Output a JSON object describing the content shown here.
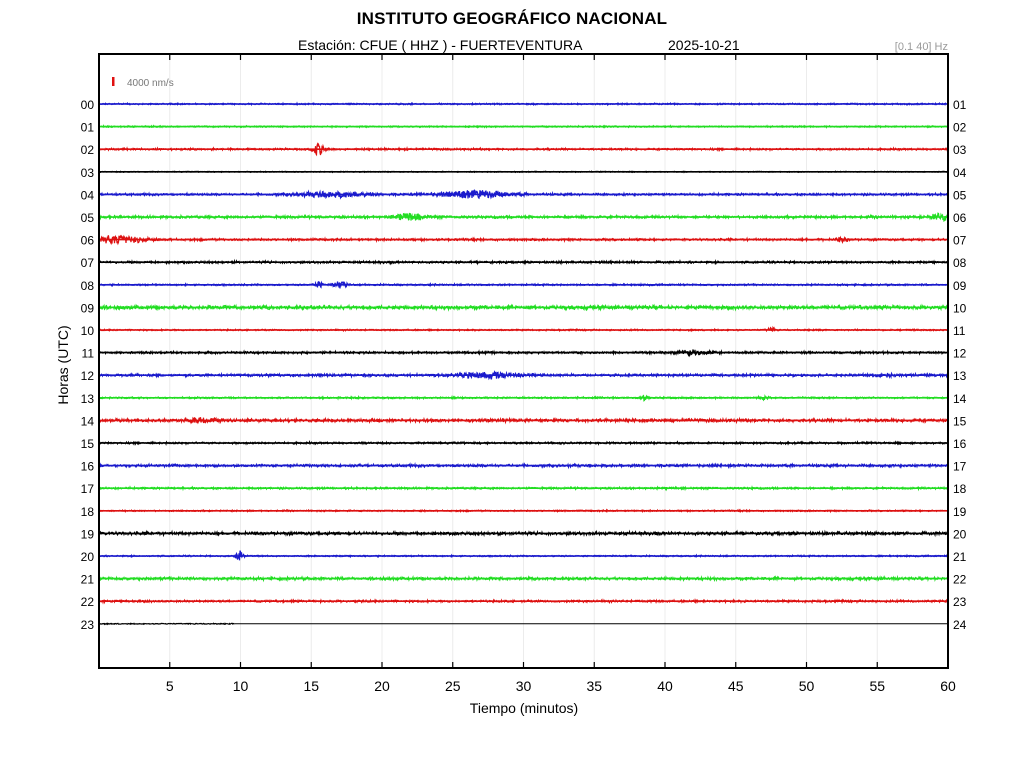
{
  "header": {
    "title": "INSTITUTO GEOGRÁFICO NACIONAL",
    "station": "Estación:  CFUE ( HHZ ) - FUERTEVENTURA",
    "date": "2025-10-21",
    "filter": "[0.1 40] Hz"
  },
  "chart_data": {
    "type": "line",
    "title": "INSTITUTO GEOGRÁFICO NACIONAL",
    "xlabel": "Tiempo (minutos)",
    "ylabel": "Horas (UTC)",
    "xlim": [
      0,
      60
    ],
    "x_ticks": [
      5,
      10,
      15,
      20,
      25,
      30,
      35,
      40,
      45,
      50,
      55,
      60
    ],
    "grid": true,
    "scale_bar": {
      "label": "4000 nm/s",
      "color": "#e01010"
    },
    "colors": {
      "blue": "#1a1acc",
      "green": "#22dd22",
      "red": "#dd1111",
      "black": "#000000"
    },
    "series": [
      {
        "left_label": "00",
        "right_label": "01",
        "color": "blue",
        "noise": 0.6,
        "events": []
      },
      {
        "left_label": "01",
        "right_label": "02",
        "color": "green",
        "noise": 0.6,
        "events": []
      },
      {
        "left_label": "02",
        "right_label": "03",
        "color": "red",
        "noise": 0.8,
        "events": [
          [
            15.5,
            5.5,
            0.4
          ]
        ]
      },
      {
        "left_label": "03",
        "right_label": "04",
        "color": "black",
        "noise": 0.4,
        "events": []
      },
      {
        "left_label": "04",
        "right_label": "05",
        "color": "blue",
        "noise": 0.9,
        "events": [
          [
            16.5,
            2.5,
            2.5
          ],
          [
            26.5,
            3.5,
            2.5
          ]
        ]
      },
      {
        "left_label": "05",
        "right_label": "06",
        "color": "green",
        "noise": 1.1,
        "events": [
          [
            22,
            3,
            1
          ],
          [
            59.5,
            3,
            0.8
          ]
        ]
      },
      {
        "left_label": "06",
        "right_label": "07",
        "color": "red",
        "noise": 0.9,
        "events": [
          [
            1.2,
            3.5,
            2
          ],
          [
            52.5,
            2,
            0.4
          ]
        ]
      },
      {
        "left_label": "07",
        "right_label": "08",
        "color": "black",
        "noise": 0.9,
        "events": []
      },
      {
        "left_label": "08",
        "right_label": "09",
        "color": "blue",
        "noise": 0.7,
        "events": [
          [
            15.5,
            3,
            0.3
          ],
          [
            17,
            3.5,
            0.4
          ]
        ]
      },
      {
        "left_label": "09",
        "right_label": "10",
        "color": "green",
        "noise": 1.6,
        "events": []
      },
      {
        "left_label": "10",
        "right_label": "11",
        "color": "red",
        "noise": 0.6,
        "events": [
          [
            47.5,
            2.5,
            0.3
          ]
        ]
      },
      {
        "left_label": "11",
        "right_label": "12",
        "color": "black",
        "noise": 0.9,
        "events": [
          [
            42,
            2,
            1
          ]
        ]
      },
      {
        "left_label": "12",
        "right_label": "13",
        "color": "blue",
        "noise": 1.1,
        "events": [
          [
            27.5,
            2.5,
            2
          ],
          [
            55.5,
            2,
            0.4
          ]
        ]
      },
      {
        "left_label": "13",
        "right_label": "14",
        "color": "green",
        "noise": 0.7,
        "events": [
          [
            38.5,
            2,
            0.3
          ],
          [
            47,
            2,
            0.3
          ]
        ]
      },
      {
        "left_label": "14",
        "right_label": "15",
        "color": "red",
        "noise": 1.3,
        "events": [
          [
            7.5,
            2,
            1.2
          ]
        ]
      },
      {
        "left_label": "15",
        "right_label": "16",
        "color": "black",
        "noise": 0.8,
        "events": []
      },
      {
        "left_label": "16",
        "right_label": "17",
        "color": "blue",
        "noise": 1.1,
        "events": []
      },
      {
        "left_label": "17",
        "right_label": "18",
        "color": "green",
        "noise": 0.8,
        "events": []
      },
      {
        "left_label": "18",
        "right_label": "19",
        "color": "red",
        "noise": 0.6,
        "events": []
      },
      {
        "left_label": "19",
        "right_label": "20",
        "color": "black",
        "noise": 1.3,
        "events": []
      },
      {
        "left_label": "20",
        "right_label": "21",
        "color": "blue",
        "noise": 0.6,
        "events": [
          [
            9.9,
            6,
            0.2
          ]
        ]
      },
      {
        "left_label": "21",
        "right_label": "22",
        "color": "green",
        "noise": 1.2,
        "events": []
      },
      {
        "left_label": "22",
        "right_label": "23",
        "color": "red",
        "noise": 0.9,
        "events": []
      },
      {
        "left_label": "23",
        "right_label": "24",
        "color": "black",
        "noise": 0.4,
        "events": [],
        "end_minute": 9.6
      }
    ]
  }
}
